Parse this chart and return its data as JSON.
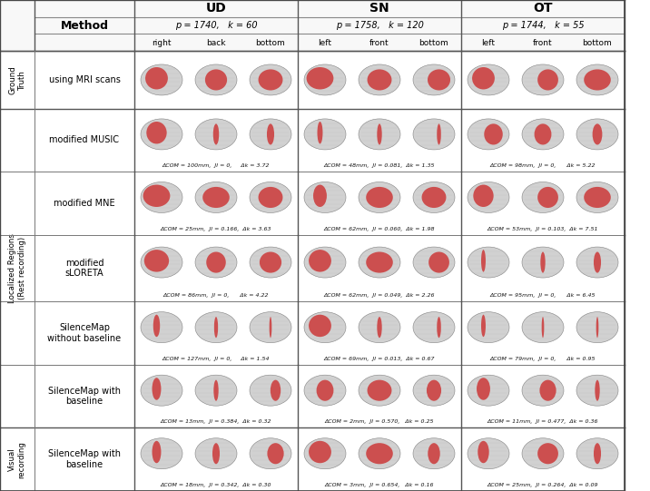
{
  "title_col1": "Method",
  "title_ud": "UD",
  "title_sn": "SN",
  "title_ot": "OT",
  "ud_params": "p = 1740,   k = 60",
  "sn_params": "p = 1758,   k = 120",
  "ot_params": "p = 1744,   k = 55",
  "ud_views": [
    "right",
    "back",
    "bottom"
  ],
  "sn_views": [
    "left",
    "front",
    "bottom"
  ],
  "ot_views": [
    "left",
    "front",
    "bottom"
  ],
  "methods": [
    "using MRI scans",
    "modified MUSIC",
    "modified MNE",
    "modified\nsLORETA",
    "SilenceMap\nwithout baseline",
    "SilenceMap with\nbaseline",
    "SilenceMap with\nbaseline"
  ],
  "metrics": {
    "ud": [
      "",
      "ΔCOM = 100mm,  JI = 0,     Δk = 3.72",
      "ΔCOM = 25mm,  JI = 0.166,  Δk = 3.63",
      "ΔCOM = 86mm,  JI = 0,      Δk = 4.22",
      "ΔCOM = 127mm,  JI = 0,     Δk = 1.54",
      "ΔCOM = 13mm,  JI = 0.384,  Δk = 0.32",
      "ΔCOM = 18mm,  JI = 0.342,  Δk = 0.30"
    ],
    "sn": [
      "",
      "ΔCOM = 48mm,  JI = 0.081,  Δk = 1.35",
      "ΔCOM = 62mm,  JI = 0.060,  Δk = 1.98",
      "ΔCOM = 62mm,  JI = 0.049,  Δk = 2.26",
      "ΔCOM = 69mm,  JI = 0.013,  Δk = 0.67",
      "ΔCOM = 2mm,  JI = 0.570,   Δk = 0.25",
      "ΔCOM = 3mm,  JI = 0.654,   Δk = 0.16"
    ],
    "ot": [
      "",
      "ΔCOM = 98mm,  JI = 0,      Δk = 5.22",
      "ΔCOM = 53mm,  JI = 0.103,  Δk = 7.51",
      "ΔCOM = 95mm,  JI = 0,      Δk = 6.45",
      "ΔCOM = 79mm,  JI = 0,      Δk = 0.95",
      "ΔCOM = 11mm,  JI = 0.477,  Δk = 0.36",
      "ΔCOM = 25mm,  JI = 0.264,  Δk = 0.09"
    ]
  },
  "bg_color": "#ffffff",
  "grid_color": "#888888",
  "text_color": "#000000"
}
